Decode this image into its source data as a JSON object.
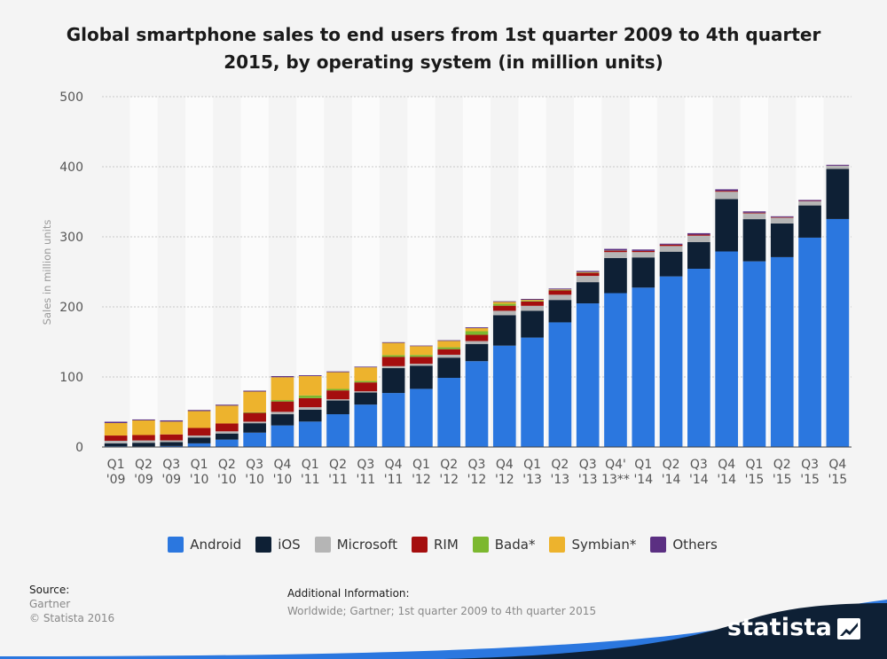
{
  "chart_data": {
    "type": "bar",
    "stacked": true,
    "title": "Global smartphone sales to end users from 1st quarter 2009 to 4th quarter 2015, by operating system (in million units)",
    "ylabel": "Sales in million units",
    "xlabel": "",
    "ylim": [
      0,
      500
    ],
    "yticks": [
      0,
      100,
      200,
      300,
      400,
      500
    ],
    "grid": true,
    "legend_position": "bottom",
    "categories": [
      [
        "Q1",
        "'09"
      ],
      [
        "Q2",
        "'09"
      ],
      [
        "Q3",
        "'09"
      ],
      [
        "Q1",
        "'10"
      ],
      [
        "Q2",
        "'10"
      ],
      [
        "Q3",
        "'10"
      ],
      [
        "Q4",
        "'10"
      ],
      [
        "Q1",
        "'11"
      ],
      [
        "Q2",
        "'11"
      ],
      [
        "Q3",
        "'11"
      ],
      [
        "Q4",
        "'11"
      ],
      [
        "Q1",
        "'12"
      ],
      [
        "Q2",
        "'12"
      ],
      [
        "Q3",
        "'12"
      ],
      [
        "Q4",
        "'12"
      ],
      [
        "Q1",
        "'13"
      ],
      [
        "Q2",
        "'13"
      ],
      [
        "Q3",
        "'13"
      ],
      [
        "Q4'",
        "13**"
      ],
      [
        "Q1",
        "'14"
      ],
      [
        "Q2",
        "'14"
      ],
      [
        "Q3",
        "'14"
      ],
      [
        "Q4",
        "'14"
      ],
      [
        "Q1",
        "'15"
      ],
      [
        "Q2",
        "'15"
      ],
      [
        "Q3",
        "'15"
      ],
      [
        "Q4",
        "'15"
      ]
    ],
    "series": [
      {
        "name": "Android",
        "color": "#2b77df",
        "values": [
          1.0,
          0.8,
          1.4,
          5.2,
          10.6,
          20.5,
          30.8,
          36.3,
          46.8,
          60.5,
          77.1,
          83.0,
          98.7,
          122.5,
          144.7,
          156.2,
          177.9,
          205.0,
          219.6,
          227.5,
          243.5,
          254.4,
          279.1,
          265.0,
          271.0,
          298.8,
          325.4
        ]
      },
      {
        "name": "iOS",
        "color": "#0e2035",
        "values": [
          4.2,
          5.3,
          5.6,
          8.4,
          8.7,
          13.5,
          16.0,
          16.9,
          19.6,
          17.3,
          35.5,
          33.1,
          28.9,
          24.6,
          43.5,
          38.3,
          32.0,
          30.3,
          50.2,
          43.1,
          35.3,
          38.2,
          74.8,
          60.2,
          48.1,
          46.0,
          71.5
        ]
      },
      {
        "name": "Microsoft",
        "color": "#b5b5b5",
        "values": [
          3.7,
          3.3,
          2.5,
          2.8,
          3.1,
          2.2,
          3.4,
          3.6,
          1.7,
          1.7,
          2.8,
          2.7,
          4.1,
          4.1,
          6.2,
          7.0,
          7.4,
          8.9,
          8.4,
          7.6,
          8.1,
          9.0,
          10.4,
          8.3,
          8.2,
          5.9,
          4.4
        ]
      },
      {
        "name": "RIM",
        "color": "#a50e0e",
        "values": [
          7.5,
          7.7,
          8.5,
          10.8,
          11.2,
          12.5,
          14.8,
          13.0,
          12.7,
          12.7,
          13.2,
          9.9,
          7.9,
          8.9,
          7.3,
          6.2,
          6.2,
          4.4,
          2.0,
          1.7,
          1.9,
          1.5,
          1.3,
          1.0,
          0.8,
          0.5,
          0.2
        ]
      },
      {
        "name": "Bada*",
        "color": "#7cb82f",
        "values": [
          0,
          0,
          0,
          0,
          0,
          0.9,
          2.0,
          3.8,
          2.1,
          2.0,
          2.5,
          2.7,
          2.7,
          5.1,
          2.7,
          1.0,
          0.8,
          0.6,
          0.3,
          0,
          0,
          0,
          0,
          0,
          0,
          0,
          0
        ]
      },
      {
        "name": "Symbian*",
        "color": "#edb32d",
        "values": [
          17.8,
          20.9,
          18.3,
          24.1,
          25.4,
          29.5,
          32.6,
          27.6,
          23.9,
          19.5,
          17.5,
          12.5,
          9.1,
          4.4,
          2.6,
          1.3,
          0.6,
          0.5,
          0,
          0,
          0,
          0,
          0,
          0,
          0,
          0,
          0
        ]
      },
      {
        "name": "Others",
        "color": "#5b2f82",
        "values": [
          1.9,
          1.3,
          1.7,
          1.5,
          1.4,
          1.3,
          1.6,
          1.2,
          1.1,
          1.0,
          1.0,
          0.9,
          1.0,
          1.2,
          1.0,
          1.4,
          1.3,
          1.6,
          2.3,
          2.0,
          1.4,
          2.1,
          2.2,
          1.8,
          1.2,
          1.4,
          1.3
        ]
      }
    ]
  },
  "source": {
    "label": "Source:",
    "name": "Gartner",
    "copyright": "© Statista 2016"
  },
  "additional_info": {
    "label": "Additional Information:",
    "text": "Worldwide; Gartner; 1st quarter 2009 to 4th quarter 2015"
  },
  "brand": {
    "name": "statista"
  }
}
